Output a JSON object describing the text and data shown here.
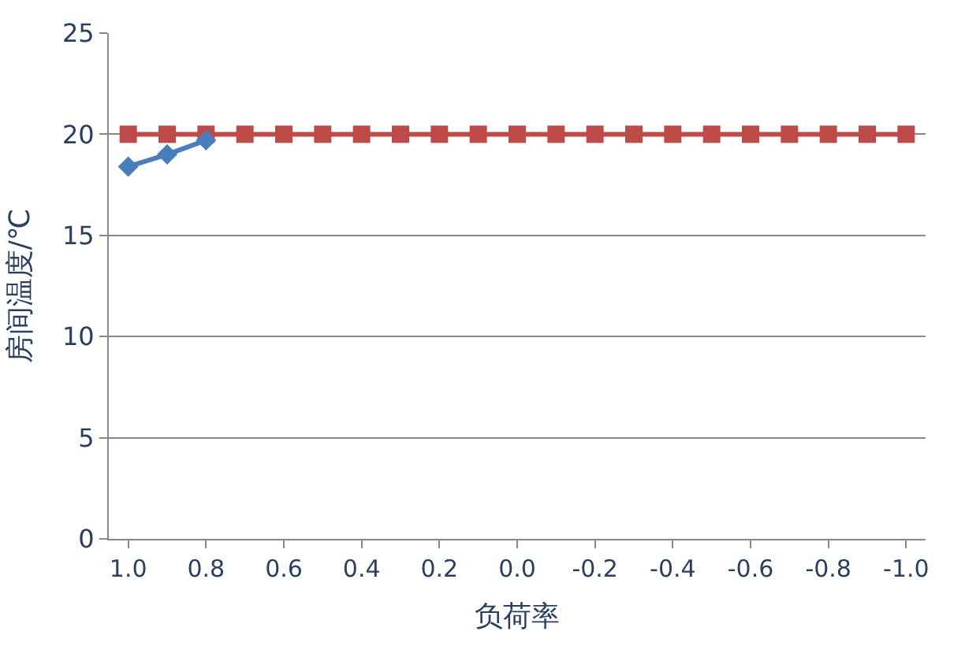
{
  "chart_data": {
    "type": "line",
    "xlabel": "负荷率",
    "ylabel": "房间温度/℃",
    "categories": [
      "1.0",
      null,
      "0.8",
      null,
      "0.6",
      null,
      "0.4",
      null,
      "0.2",
      null,
      "0.0",
      null,
      "-0.2",
      null,
      "-0.4",
      null,
      "-0.6",
      null,
      "-0.8",
      null,
      "-1.0"
    ],
    "series": [
      {
        "color": "#4a7ebb",
        "marker": "diamond",
        "values": [
          18.4,
          19.0,
          19.7,
          null,
          null,
          null,
          null,
          null,
          null,
          null,
          null,
          null,
          null,
          null,
          null,
          null,
          null,
          null,
          null,
          null,
          null
        ]
      },
      {
        "color": "#be4b48",
        "marker": "square",
        "values": [
          20,
          20,
          20,
          20,
          20,
          20,
          20,
          20,
          20,
          20,
          20,
          20,
          20,
          20,
          20,
          20,
          20,
          20,
          20,
          20,
          20
        ]
      }
    ],
    "ylim": [
      0,
      25
    ],
    "yticks": [
      0,
      5,
      10,
      15,
      20,
      25
    ],
    "grid": "y"
  }
}
